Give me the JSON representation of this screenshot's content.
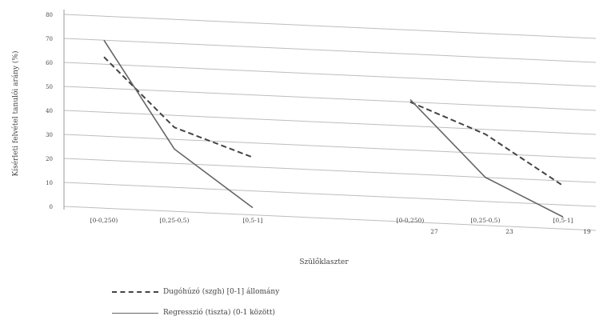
{
  "chart_data": {
    "type": "line",
    "title": "",
    "xlabel": "Szülőklaszter",
    "ylabel": "Kísérleti felvétel tanulói arány (%)",
    "ylim": [
      0,
      80
    ],
    "yticks": [
      0,
      10,
      20,
      30,
      40,
      50,
      60,
      70,
      80
    ],
    "grid": true,
    "legend_position": "bottom",
    "groups": [
      {
        "categories": [
          "[0-0,250)",
          "[0,25-0,5)",
          "[0,5-1]"
        ],
        "series": [
          {
            "name": "Dugóhúzó (szgh) [0-1] állomány",
            "style": "dashed",
            "values": [
              63,
              35,
              24
            ]
          },
          {
            "name": "Regresszió (tiszta) (0-1 között)",
            "style": "solid",
            "values": [
              70,
              26,
              3
            ]
          }
        ]
      },
      {
        "categories": [
          "[0-0,250)+27",
          "[0,25-0,5)+23",
          "[0,5-1]+19"
        ],
        "series": [
          {
            "name": "Dugóhúzó (szgh) [0-1] állomány",
            "style": "dashed",
            "values": [
              50,
              38,
              18
            ]
          },
          {
            "name": "Regresszió (tiszta) (0-1 között)",
            "style": "solid",
            "values": [
              51,
              20,
              5
            ]
          }
        ]
      }
    ]
  },
  "colors": {
    "dashed_series": "#444444",
    "solid_series": "#666666",
    "grid": "#bdbdbd",
    "axis": "#999999"
  },
  "legend": {
    "items": [
      {
        "label": "Dugóhúzó (szgh) [0-1] állomány",
        "style": "dashed"
      },
      {
        "label": "Regresszió (tiszta) (0-1 között)",
        "style": "solid"
      }
    ]
  }
}
